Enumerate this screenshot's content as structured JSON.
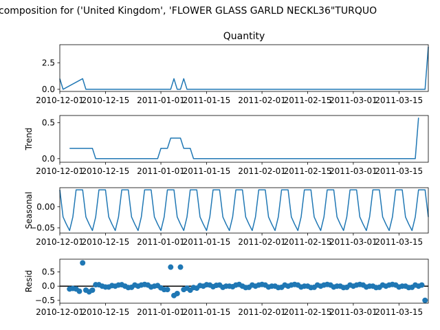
{
  "figure": {
    "suptitle": "composition for ('United Kingdom', 'FLOWER GLASS GARLD NECKL36\"TURQUO",
    "line_color": "#1f77b4"
  },
  "chart_data": [
    {
      "type": "line",
      "title": "Quantity",
      "ylabel": "",
      "ylim": [
        -0.2,
        4.2
      ],
      "yticks": [
        0.0,
        2.5
      ],
      "ytick_labels": [
        "0.0",
        "2.5"
      ],
      "x_start": "2010-12-01",
      "xlim_days": [
        0,
        113
      ],
      "xtick_labels": [
        "2010-12-01",
        "2010-12-15",
        "2011-01-01",
        "2011-01-15",
        "2011-02-01",
        "2011-02-15",
        "2011-03-01",
        "2011-03-15"
      ],
      "points": [
        [
          0,
          1
        ],
        [
          1,
          0
        ],
        [
          7,
          1
        ],
        [
          8,
          0
        ],
        [
          34,
          0
        ],
        [
          35,
          1
        ],
        [
          36,
          0
        ],
        [
          37,
          0
        ],
        [
          38,
          1
        ],
        [
          39,
          0
        ],
        [
          112,
          0
        ],
        [
          113,
          4
        ]
      ]
    },
    {
      "type": "line",
      "title": "",
      "ylabel": "Trend",
      "ylim": [
        -0.05,
        0.6
      ],
      "yticks": [
        0.0,
        0.5
      ],
      "ytick_labels": [
        "0.0",
        "0.5"
      ],
      "x_start": "2010-12-01",
      "xlim_days": [
        0,
        113
      ],
      "xtick_labels": [
        "2010-12-01",
        "2010-12-15",
        "2011-01-01",
        "2011-01-15",
        "2011-02-01",
        "2011-02-15",
        "2011-03-01",
        "2011-03-15"
      ],
      "points": [
        [
          3,
          0.143
        ],
        [
          10,
          0.143
        ],
        [
          11,
          0
        ],
        [
          30,
          0
        ],
        [
          31,
          0.143
        ],
        [
          33,
          0.143
        ],
        [
          34,
          0.286
        ],
        [
          37,
          0.286
        ],
        [
          38,
          0.143
        ],
        [
          40,
          0.143
        ],
        [
          41,
          0
        ],
        [
          109,
          0
        ],
        [
          110,
          0.57
        ]
      ]
    },
    {
      "type": "line",
      "title": "",
      "ylabel": "Seasonal",
      "ylim": [
        -0.062,
        0.045
      ],
      "yticks": [
        0.0,
        -0.05
      ],
      "ytick_labels": [
        "0.00",
        "−0.05"
      ],
      "x_start": "2010-12-01",
      "xlim_days": [
        0,
        113
      ],
      "xtick_labels": [
        "2010-12-01",
        "2010-12-15",
        "2011-01-01",
        "2011-01-15",
        "2011-02-01",
        "2011-02-15",
        "2011-03-01",
        "2011-03-15"
      ],
      "period_values": [
        0.04,
        -0.024,
        -0.041,
        -0.056,
        -0.024,
        0.04,
        0.04
      ]
    },
    {
      "type": "scatter",
      "title": "",
      "ylabel": "Resid",
      "ylim": [
        -0.6,
        0.95
      ],
      "yticks": [
        0.5,
        0.0,
        -0.5
      ],
      "ytick_labels": [
        "0.5",
        "0.0",
        "−0.5"
      ],
      "hline": 0,
      "x_start": "2010-12-01",
      "xlim_days": [
        0,
        113
      ],
      "xtick_labels": [
        "2010-12-01",
        "2010-12-15",
        "2011-01-01",
        "2011-01-15",
        "2011-02-01",
        "2011-02-15",
        "2011-03-01",
        "2011-03-15"
      ],
      "points": [
        [
          3,
          -0.1
        ],
        [
          4,
          -0.08
        ],
        [
          5,
          -0.1
        ],
        [
          6,
          -0.18
        ],
        [
          7,
          0.82
        ],
        [
          8,
          -0.14
        ],
        [
          9,
          -0.2
        ],
        [
          10,
          -0.14
        ],
        [
          11,
          0.05
        ],
        [
          12,
          0.05
        ],
        [
          13,
          0
        ],
        [
          14,
          -0.03
        ],
        [
          15,
          -0.03
        ],
        [
          16,
          0.02
        ],
        [
          17,
          0
        ],
        [
          18,
          0.04
        ],
        [
          19,
          0.05
        ],
        [
          20,
          0
        ],
        [
          21,
          -0.05
        ],
        [
          22,
          -0.04
        ],
        [
          23,
          0.04
        ],
        [
          24,
          0
        ],
        [
          25,
          0.04
        ],
        [
          26,
          0.06
        ],
        [
          27,
          0.04
        ],
        [
          28,
          -0.03
        ],
        [
          29,
          0
        ],
        [
          30,
          0.02
        ],
        [
          31,
          -0.06
        ],
        [
          32,
          -0.12
        ],
        [
          33,
          -0.12
        ],
        [
          34,
          0.67
        ],
        [
          35,
          -0.33
        ],
        [
          36,
          -0.26
        ],
        [
          37,
          0.67
        ],
        [
          38,
          -0.12
        ],
        [
          39,
          -0.07
        ],
        [
          40,
          -0.14
        ],
        [
          41,
          -0.05
        ],
        [
          42,
          -0.07
        ],
        [
          43,
          0.02
        ],
        [
          44,
          0
        ],
        [
          45,
          0.05
        ],
        [
          46,
          0.04
        ],
        [
          47,
          -0.02
        ],
        [
          48,
          0.03
        ],
        [
          49,
          0.04
        ],
        [
          50,
          -0.04
        ],
        [
          51,
          0
        ],
        [
          52,
          0
        ],
        [
          53,
          -0.02
        ],
        [
          54,
          0.04
        ],
        [
          55,
          0.06
        ],
        [
          56,
          0
        ],
        [
          57,
          -0.05
        ],
        [
          58,
          -0.04
        ],
        [
          59,
          0.04
        ],
        [
          60,
          0
        ],
        [
          61,
          0.04
        ],
        [
          62,
          0.06
        ],
        [
          63,
          0.04
        ],
        [
          64,
          -0.03
        ],
        [
          65,
          0
        ],
        [
          66,
          0
        ],
        [
          67,
          -0.05
        ],
        [
          68,
          -0.04
        ],
        [
          69,
          0.04
        ],
        [
          70,
          0
        ],
        [
          71,
          0.04
        ],
        [
          72,
          0.06
        ],
        [
          73,
          0.04
        ],
        [
          74,
          -0.03
        ],
        [
          75,
          0
        ],
        [
          76,
          0
        ],
        [
          77,
          -0.05
        ],
        [
          78,
          -0.04
        ],
        [
          79,
          0.04
        ],
        [
          80,
          0
        ],
        [
          81,
          0.04
        ],
        [
          82,
          0.06
        ],
        [
          83,
          0.04
        ],
        [
          84,
          -0.03
        ],
        [
          85,
          0
        ],
        [
          86,
          0
        ],
        [
          87,
          -0.05
        ],
        [
          88,
          -0.04
        ],
        [
          89,
          0.04
        ],
        [
          90,
          0
        ],
        [
          91,
          0.04
        ],
        [
          92,
          0.06
        ],
        [
          93,
          0.04
        ],
        [
          94,
          -0.03
        ],
        [
          95,
          0
        ],
        [
          96,
          0
        ],
        [
          97,
          -0.05
        ],
        [
          98,
          -0.04
        ],
        [
          99,
          0.04
        ],
        [
          100,
          0
        ],
        [
          101,
          0.04
        ],
        [
          102,
          0.06
        ],
        [
          103,
          0.04
        ],
        [
          104,
          -0.03
        ],
        [
          105,
          0
        ],
        [
          106,
          0
        ],
        [
          107,
          -0.05
        ],
        [
          108,
          -0.04
        ],
        [
          109,
          0.04
        ],
        [
          110,
          0
        ],
        [
          111,
          0.04
        ],
        [
          112,
          -0.5
        ]
      ]
    }
  ]
}
